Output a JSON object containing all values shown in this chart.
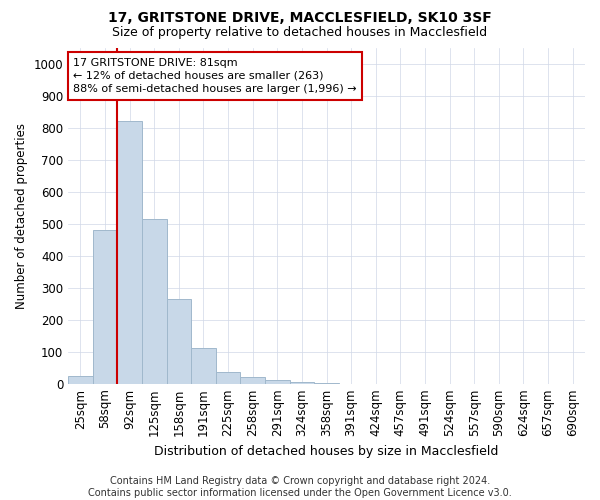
{
  "title": "17, GRITSTONE DRIVE, MACCLESFIELD, SK10 3SF",
  "subtitle": "Size of property relative to detached houses in Macclesfield",
  "xlabel": "Distribution of detached houses by size in Macclesfield",
  "ylabel": "Number of detached properties",
  "footer_line1": "Contains HM Land Registry data © Crown copyright and database right 2024.",
  "footer_line2": "Contains public sector information licensed under the Open Government Licence v3.0.",
  "categories": [
    "25sqm",
    "58sqm",
    "92sqm",
    "125sqm",
    "158sqm",
    "191sqm",
    "225sqm",
    "258sqm",
    "291sqm",
    "324sqm",
    "358sqm",
    "391sqm",
    "424sqm",
    "457sqm",
    "491sqm",
    "524sqm",
    "557sqm",
    "590sqm",
    "624sqm",
    "657sqm",
    "690sqm"
  ],
  "values": [
    25,
    480,
    820,
    515,
    265,
    110,
    38,
    20,
    10,
    5,
    1,
    0,
    0,
    0,
    0,
    0,
    0,
    0,
    0,
    0,
    0
  ],
  "bar_color": "#c8d8e8",
  "bar_edge_color": "#a0b8cc",
  "red_line_x": 1.5,
  "red_line_color": "#cc0000",
  "annotation_line1": "17 GRITSTONE DRIVE: 81sqm",
  "annotation_line2": "← 12% of detached houses are smaller (263)",
  "annotation_line3": "88% of semi-detached houses are larger (1,996) →",
  "annotation_box_color": "#ffffff",
  "annotation_box_edge_color": "#cc0000",
  "ylim": [
    0,
    1050
  ],
  "yticks": [
    0,
    100,
    200,
    300,
    400,
    500,
    600,
    700,
    800,
    900,
    1000
  ],
  "background_color": "#ffffff",
  "grid_color": "#d0d8e8",
  "title_fontsize": 10,
  "subtitle_fontsize": 9,
  "xlabel_fontsize": 9,
  "ylabel_fontsize": 8.5,
  "tick_fontsize": 8.5,
  "annotation_fontsize": 8,
  "footer_fontsize": 7
}
